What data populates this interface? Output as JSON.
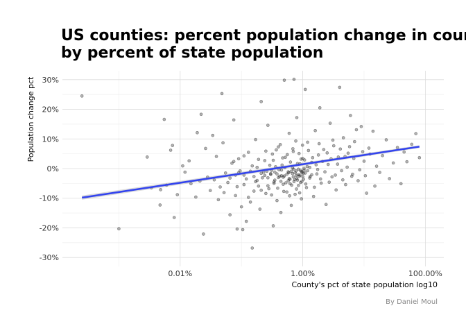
{
  "chart_data": {
    "type": "scatter",
    "title": "US counties: percent population change in country",
    "title_line2": "by percent of state population",
    "xlabel": "County's pct of state population log10",
    "ylabel": "Population change pct",
    "caption": "By Daniel Moul",
    "x_scale": "log10",
    "xlim": [
      0.00012,
      200
    ],
    "ylim": [
      -33,
      33
    ],
    "x_ticks": [
      {
        "value": 0.01,
        "label": "0.01%"
      },
      {
        "value": 1,
        "label": "1.00%"
      },
      {
        "value": 100,
        "label": "100.00%"
      }
    ],
    "y_ticks": [
      {
        "value": -30,
        "label": "-30%"
      },
      {
        "value": -20,
        "label": "-20%"
      },
      {
        "value": -10,
        "label": "-10%"
      },
      {
        "value": 0,
        "label": "0%"
      },
      {
        "value": 10,
        "label": "10%"
      },
      {
        "value": 20,
        "label": "20%"
      },
      {
        "value": 30,
        "label": "30%"
      }
    ],
    "grid": true,
    "point_color": "#000000",
    "point_opacity": 0.3,
    "trend_color": "#3344ee",
    "trend_line": {
      "x": [
        0.00025,
        80
      ],
      "y": [
        -9.8,
        7.4
      ]
    },
    "points": [
      [
        0.00025,
        24.5
      ],
      [
        0.001,
        -20.3
      ],
      [
        0.0029,
        3.9
      ],
      [
        0.0034,
        -6.5
      ],
      [
        0.0047,
        -12.3
      ],
      [
        0.0048,
        -7.1
      ],
      [
        0.0055,
        16.6
      ],
      [
        0.006,
        -5.6
      ],
      [
        0.007,
        6.2
      ],
      [
        0.0075,
        7.8
      ],
      [
        0.008,
        -16.5
      ],
      [
        0.009,
        -8.8
      ],
      [
        0.011,
        0.9
      ],
      [
        0.012,
        -1.2
      ],
      [
        0.014,
        2.6
      ],
      [
        0.015,
        -5.1
      ],
      [
        0.018,
        -9.6
      ],
      [
        0.019,
        12.1
      ],
      [
        0.021,
        -4.2
      ],
      [
        0.022,
        18.3
      ],
      [
        0.024,
        -22.1
      ],
      [
        0.026,
        6.8
      ],
      [
        0.028,
        -2.9
      ],
      [
        0.031,
        -7.4
      ],
      [
        0.034,
        11.2
      ],
      [
        0.036,
        -3.8
      ],
      [
        0.039,
        4.1
      ],
      [
        0.042,
        -10.5
      ],
      [
        0.045,
        -6.2
      ],
      [
        0.048,
        25.3
      ],
      [
        0.05,
        8.7
      ],
      [
        0.052,
        -8.1
      ],
      [
        0.055,
        -1.5
      ],
      [
        0.06,
        -4.7
      ],
      [
        0.065,
        -15.6
      ],
      [
        0.07,
        1.8
      ],
      [
        0.075,
        16.4
      ],
      [
        0.08,
        -9.1
      ],
      [
        0.085,
        -20.4
      ],
      [
        0.09,
        3.3
      ],
      [
        0.1,
        -12.9
      ],
      [
        0.105,
        -20.6
      ],
      [
        0.11,
        -2.2
      ],
      [
        0.12,
        -17.8
      ],
      [
        0.13,
        5.5
      ],
      [
        0.14,
        -11.3
      ],
      [
        0.15,
        -26.8
      ],
      [
        0.16,
        -7.6
      ],
      [
        0.17,
        9.8
      ],
      [
        0.18,
        0.4
      ],
      [
        0.19,
        -5.9
      ],
      [
        0.2,
        -13.7
      ],
      [
        0.21,
        22.6
      ],
      [
        0.22,
        -3.1
      ],
      [
        0.24,
        2.7
      ],
      [
        0.25,
        -8.4
      ],
      [
        0.26,
        -0.9
      ],
      [
        0.27,
        14.6
      ],
      [
        0.28,
        -6.8
      ],
      [
        0.3,
        -1.7
      ],
      [
        0.32,
        4.9
      ],
      [
        0.33,
        -19.3
      ],
      [
        0.34,
        -4.5
      ],
      [
        0.36,
        0.6
      ],
      [
        0.38,
        -10.8
      ],
      [
        0.4,
        7.3
      ],
      [
        0.42,
        -2.6
      ],
      [
        0.44,
        -14.8
      ],
      [
        0.46,
        1.2
      ],
      [
        0.48,
        -5.3
      ],
      [
        0.5,
        29.8
      ],
      [
        0.52,
        3.8
      ],
      [
        0.55,
        -7.9
      ],
      [
        0.58,
        -1.1
      ],
      [
        0.6,
        11.9
      ],
      [
        0.62,
        -3.6
      ],
      [
        0.65,
        -12.4
      ],
      [
        0.68,
        0.2
      ],
      [
        0.7,
        5.8
      ],
      [
        0.72,
        30.1
      ],
      [
        0.75,
        -8.7
      ],
      [
        0.78,
        -2.3
      ],
      [
        0.8,
        17.2
      ],
      [
        0.85,
        -5.7
      ],
      [
        0.9,
        1.6
      ],
      [
        0.95,
        -10.2
      ],
      [
        1.0,
        3.4
      ],
      [
        1.05,
        -0.5
      ],
      [
        1.1,
        26.7
      ],
      [
        1.15,
        -6.4
      ],
      [
        1.2,
        8.9
      ],
      [
        1.3,
        -3.2
      ],
      [
        1.4,
        2.1
      ],
      [
        1.5,
        -9.4
      ],
      [
        1.6,
        12.8
      ],
      [
        1.7,
        -1.8
      ],
      [
        1.8,
        4.6
      ],
      [
        1.9,
        20.5
      ],
      [
        2.0,
        -4.9
      ],
      [
        2.2,
        6.4
      ],
      [
        2.4,
        -12.1
      ],
      [
        2.6,
        1.4
      ],
      [
        2.8,
        15.3
      ],
      [
        3.0,
        -2.8
      ],
      [
        3.2,
        7.7
      ],
      [
        3.5,
        -7.2
      ],
      [
        3.8,
        3.9
      ],
      [
        4.0,
        27.4
      ],
      [
        4.3,
        -0.7
      ],
      [
        4.6,
        10.4
      ],
      [
        5.0,
        -5.4
      ],
      [
        5.5,
        5.2
      ],
      [
        6.0,
        17.9
      ],
      [
        6.5,
        -1.9
      ],
      [
        7.0,
        9.1
      ],
      [
        8.0,
        -4.1
      ],
      [
        9.0,
        14.2
      ],
      [
        10.0,
        2.5
      ],
      [
        11.0,
        -8.3
      ],
      [
        12.0,
        6.9
      ],
      [
        14.0,
        12.6
      ],
      [
        16.0,
        0.8
      ],
      [
        18.0,
        -1.3
      ],
      [
        20.0,
        4.4
      ],
      [
        23.0,
        9.7
      ],
      [
        26.0,
        -3.4
      ],
      [
        30.0,
        1.9
      ],
      [
        35.0,
        7.1
      ],
      [
        40.0,
        -5.1
      ],
      [
        45.0,
        5.6
      ],
      [
        50.0,
        2.3
      ],
      [
        60.0,
        8.2
      ],
      [
        70.0,
        11.8
      ],
      [
        80.0,
        3.7
      ],
      [
        0.065,
        -3.2
      ],
      [
        0.075,
        2.4
      ],
      [
        0.085,
        -6.1
      ],
      [
        0.095,
        -0.8
      ],
      [
        0.11,
        4.3
      ],
      [
        0.13,
        -9.7
      ],
      [
        0.15,
        0.9
      ],
      [
        0.17,
        -4.4
      ],
      [
        0.19,
        3.1
      ],
      [
        0.21,
        -7.3
      ],
      [
        0.23,
        -1.2
      ],
      [
        0.25,
        5.9
      ],
      [
        0.27,
        -5.8
      ],
      [
        0.29,
        1.1
      ],
      [
        0.31,
        -8.9
      ],
      [
        0.33,
        2.8
      ],
      [
        0.35,
        -3.9
      ],
      [
        0.37,
        6.3
      ],
      [
        0.39,
        -6.6
      ],
      [
        0.41,
        -0.4
      ],
      [
        0.43,
        8.1
      ],
      [
        0.45,
        -2.4
      ],
      [
        0.47,
        3.6
      ],
      [
        0.49,
        -7.7
      ],
      [
        0.51,
        0.3
      ],
      [
        0.53,
        -4.8
      ],
      [
        0.56,
        4.7
      ],
      [
        0.59,
        -1.4
      ],
      [
        0.61,
        -9.2
      ],
      [
        0.63,
        2.2
      ],
      [
        0.66,
        -5.6
      ],
      [
        0.69,
        6.7
      ],
      [
        0.71,
        -0.2
      ],
      [
        0.74,
        -3.7
      ],
      [
        0.77,
        9.3
      ],
      [
        0.79,
        -6.9
      ],
      [
        0.82,
        1.7
      ],
      [
        0.84,
        -2.1
      ],
      [
        0.87,
        5.1
      ],
      [
        0.89,
        -8.2
      ],
      [
        0.92,
        -0.6
      ],
      [
        0.94,
        3.2
      ],
      [
        0.97,
        -4.3
      ],
      [
        0.99,
        7.9
      ],
      [
        1.02,
        -1.6
      ],
      [
        1.07,
        2.9
      ],
      [
        1.12,
        -5.2
      ],
      [
        1.18,
        0.7
      ],
      [
        1.24,
        6.1
      ],
      [
        1.32,
        -2.7
      ],
      [
        1.45,
        3.7
      ],
      [
        1.55,
        -6.3
      ],
      [
        1.65,
        1.3
      ],
      [
        1.75,
        -0.3
      ],
      [
        1.85,
        8.4
      ],
      [
        1.95,
        -3.5
      ],
      [
        2.1,
        2.4
      ],
      [
        2.3,
        -1.1
      ],
      [
        2.5,
        5.3
      ],
      [
        2.7,
        -4.6
      ],
      [
        2.9,
        3.3
      ],
      [
        3.1,
        9.6
      ],
      [
        3.4,
        -2.2
      ],
      [
        3.7,
        1.5
      ],
      [
        4.1,
        6.6
      ],
      [
        4.5,
        -3.8
      ],
      [
        4.9,
        4.1
      ],
      [
        5.3,
        0.5
      ],
      [
        5.8,
        7.4
      ],
      [
        6.3,
        -2.6
      ],
      [
        6.8,
        3.4
      ],
      [
        7.5,
        13.1
      ],
      [
        8.5,
        -0.4
      ],
      [
        9.5,
        5.7
      ],
      [
        10.5,
        -2.4
      ],
      [
        12.5,
        4.9
      ],
      [
        15.0,
        -5.9
      ],
      [
        0.3,
        -2.0
      ],
      [
        0.35,
        -1.2
      ],
      [
        0.4,
        -3.0
      ],
      [
        0.45,
        -0.5
      ],
      [
        0.5,
        -2.5
      ],
      [
        0.55,
        -1.9
      ],
      [
        0.6,
        -3.4
      ],
      [
        0.65,
        -0.9
      ],
      [
        0.7,
        -2.8
      ],
      [
        0.75,
        -1.4
      ],
      [
        0.8,
        -3.3
      ],
      [
        0.85,
        -0.2
      ],
      [
        0.9,
        -2.2
      ],
      [
        0.95,
        -1.0
      ],
      [
        1.0,
        -2.7
      ],
      [
        1.05,
        0.1
      ],
      [
        1.1,
        -1.5
      ],
      [
        1.2,
        -0.7
      ],
      [
        1.3,
        0.4
      ],
      [
        1.4,
        -2.1
      ],
      [
        0.58,
        -4.1
      ],
      [
        0.62,
        -5.1
      ],
      [
        0.68,
        -1.7
      ],
      [
        0.72,
        -4.4
      ],
      [
        0.78,
        -0.8
      ],
      [
        0.82,
        -3.9
      ],
      [
        0.88,
        -2.6
      ],
      [
        0.92,
        -4.7
      ],
      [
        0.98,
        -1.3
      ],
      [
        1.03,
        -3.6
      ],
      [
        0.48,
        -2.9
      ],
      [
        0.44,
        -4.3
      ],
      [
        0.38,
        -1.8
      ],
      [
        0.34,
        -5.0
      ],
      [
        0.31,
        -0.6
      ],
      [
        0.27,
        -3.1
      ],
      [
        0.24,
        -2.3
      ],
      [
        0.21,
        -1.6
      ],
      [
        0.18,
        -4.0
      ],
      [
        0.16,
        -2.7
      ],
      [
        0.14,
        -0.9
      ],
      [
        0.12,
        -3.5
      ],
      [
        0.11,
        -5.4
      ],
      [
        0.09,
        -1.4
      ],
      [
        0.08,
        -2.2
      ]
    ]
  }
}
